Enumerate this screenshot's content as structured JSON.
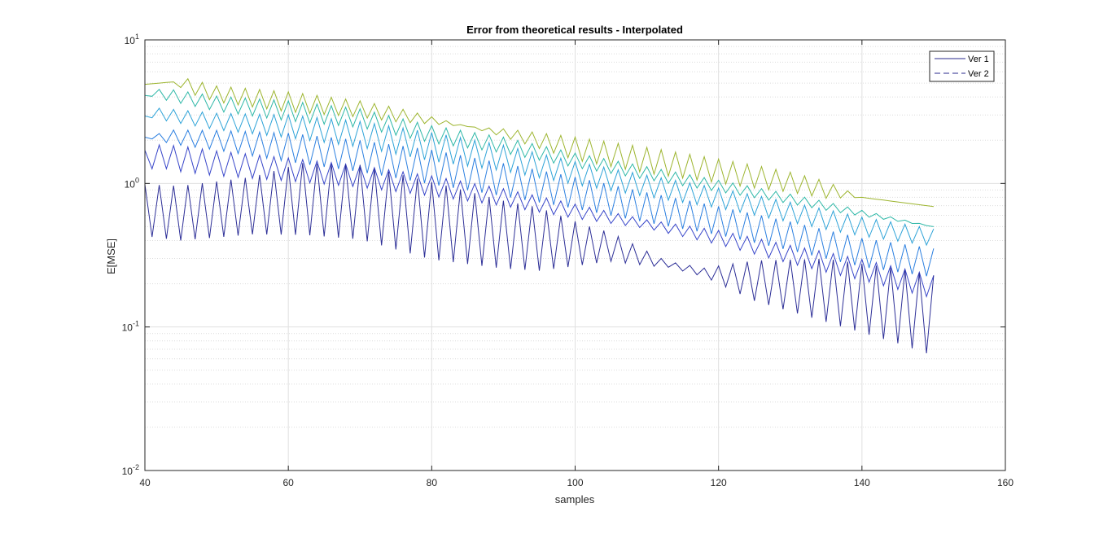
{
  "chart_data": {
    "type": "line",
    "title": "Error from theoretical results - Interpolated",
    "xlabel": "samples",
    "ylabel": "E[MSE]",
    "xlim": [
      40,
      160
    ],
    "ylim": [
      0.01,
      10
    ],
    "yscale": "log",
    "grid": true,
    "minor_grid_y": true,
    "x_ticks": [
      "40",
      "60",
      "80",
      "100",
      "120",
      "140",
      "160"
    ],
    "y_ticks": [
      {
        "base": "10",
        "exp": "1"
      },
      {
        "base": "10",
        "exp": "0"
      },
      {
        "base": "10",
        "exp": "-1"
      },
      {
        "base": "10",
        "exp": "-2"
      }
    ],
    "legend": {
      "placement": "top-right",
      "entries": [
        {
          "label": "Ver 1",
          "style": "solid",
          "color": "#2a2a8c"
        },
        {
          "label": "Ver 2",
          "style": "dashed",
          "color": "#2a2a8c"
        }
      ]
    },
    "series": [
      {
        "color": "#9db52f",
        "x_start": 40,
        "x_end": 150,
        "anchors": [
          [
            40,
            4.9
          ],
          [
            44,
            5.1
          ],
          [
            50,
            4.2
          ],
          [
            60,
            3.7
          ],
          [
            70,
            3.3
          ],
          [
            80,
            2.75
          ],
          [
            90,
            2.25
          ],
          [
            100,
            1.75
          ],
          [
            110,
            1.45
          ],
          [
            120,
            1.22
          ],
          [
            130,
            1.02
          ],
          [
            140,
            0.8
          ],
          [
            150,
            0.69
          ]
        ],
        "osc": [
          [
            40,
            0.0
          ],
          [
            44,
            0.0
          ],
          [
            46,
            0.05
          ],
          [
            60,
            0.07
          ],
          [
            75,
            0.05
          ],
          [
            85,
            0.0
          ],
          [
            92,
            0.04
          ],
          [
            100,
            0.08
          ],
          [
            110,
            0.09
          ],
          [
            125,
            0.08
          ],
          [
            135,
            0.06
          ],
          [
            140,
            0.0
          ],
          [
            150,
            0.0
          ]
        ]
      },
      {
        "color": "#2fb8a8",
        "x_start": 40,
        "x_end": 150,
        "anchors": [
          [
            40,
            4.1
          ],
          [
            42,
            4.25
          ],
          [
            50,
            3.6
          ],
          [
            60,
            3.2
          ],
          [
            70,
            2.85
          ],
          [
            80,
            2.2
          ],
          [
            90,
            1.85
          ],
          [
            100,
            1.45
          ],
          [
            110,
            1.18
          ],
          [
            120,
            0.96
          ],
          [
            130,
            0.78
          ],
          [
            140,
            0.62
          ],
          [
            150,
            0.5
          ]
        ],
        "osc": [
          [
            40,
            0.0
          ],
          [
            43,
            0.04
          ],
          [
            60,
            0.07
          ],
          [
            80,
            0.06
          ],
          [
            100,
            0.05
          ],
          [
            120,
            0.04
          ],
          [
            135,
            0.03
          ],
          [
            150,
            0.0
          ]
        ]
      },
      {
        "color": "#2ea3d8",
        "x_start": 40,
        "x_end": 150,
        "anchors": [
          [
            40,
            2.95
          ],
          [
            42,
            3.05
          ],
          [
            50,
            2.7
          ],
          [
            60,
            2.5
          ],
          [
            70,
            2.2
          ],
          [
            80,
            1.8
          ],
          [
            90,
            1.5
          ],
          [
            100,
            1.18
          ],
          [
            110,
            0.96
          ],
          [
            120,
            0.79
          ],
          [
            130,
            0.63
          ],
          [
            140,
            0.5
          ],
          [
            150,
            0.42
          ]
        ],
        "osc": [
          [
            40,
            0.0
          ],
          [
            42,
            0.04
          ],
          [
            60,
            0.08
          ],
          [
            80,
            0.1
          ],
          [
            100,
            0.08
          ],
          [
            120,
            0.07
          ],
          [
            135,
            0.07
          ],
          [
            150,
            0.06
          ]
        ]
      },
      {
        "color": "#2b7fe0",
        "x_start": 40,
        "x_end": 150,
        "anchors": [
          [
            40,
            2.1
          ],
          [
            44,
            2.1
          ],
          [
            50,
            2.0
          ],
          [
            60,
            1.78
          ],
          [
            70,
            1.55
          ],
          [
            80,
            1.3
          ],
          [
            90,
            1.06
          ],
          [
            100,
            0.86
          ],
          [
            110,
            0.68
          ],
          [
            120,
            0.55
          ],
          [
            130,
            0.43
          ],
          [
            140,
            0.33
          ],
          [
            150,
            0.28
          ]
        ],
        "osc": [
          [
            40,
            0.0
          ],
          [
            44,
            0.05
          ],
          [
            60,
            0.1
          ],
          [
            80,
            0.12
          ],
          [
            100,
            0.11
          ],
          [
            120,
            0.1
          ],
          [
            140,
            0.1
          ],
          [
            150,
            0.1
          ]
        ]
      },
      {
        "color": "#3745c9",
        "x_start": 40,
        "x_end": 150,
        "anchors": [
          [
            40,
            1.45
          ],
          [
            42,
            1.55
          ],
          [
            50,
            1.38
          ],
          [
            60,
            1.25
          ],
          [
            70,
            1.12
          ],
          [
            80,
            0.96
          ],
          [
            90,
            0.8
          ],
          [
            100,
            0.64
          ],
          [
            110,
            0.52
          ],
          [
            120,
            0.42
          ],
          [
            130,
            0.32
          ],
          [
            140,
            0.25
          ],
          [
            150,
            0.19
          ]
        ],
        "osc": [
          [
            40,
            0.07
          ],
          [
            45,
            0.09
          ],
          [
            60,
            0.08
          ],
          [
            80,
            0.07
          ],
          [
            100,
            0.05
          ],
          [
            110,
            0.03
          ],
          [
            120,
            0.05
          ],
          [
            135,
            0.07
          ],
          [
            150,
            0.08
          ]
        ]
      },
      {
        "color": "#2d2f97",
        "x_start": 40,
        "x_end": 150,
        "anchors": [
          [
            40,
            0.65
          ],
          [
            45,
            0.62
          ],
          [
            55,
            0.7
          ],
          [
            62,
            0.78
          ],
          [
            70,
            0.74
          ],
          [
            80,
            0.55
          ],
          [
            90,
            0.44
          ],
          [
            100,
            0.38
          ],
          [
            105,
            0.36
          ],
          [
            112,
            0.28
          ],
          [
            118,
            0.24
          ],
          [
            125,
            0.21
          ],
          [
            135,
            0.18
          ],
          [
            145,
            0.14
          ],
          [
            150,
            0.12
          ]
        ],
        "osc": [
          [
            40,
            0.18
          ],
          [
            45,
            0.19
          ],
          [
            55,
            0.2
          ],
          [
            62,
            0.25
          ],
          [
            80,
            0.27
          ],
          [
            95,
            0.22
          ],
          [
            102,
            0.13
          ],
          [
            108,
            0.07
          ],
          [
            113,
            0.02
          ],
          [
            118,
            0.03
          ],
          [
            125,
            0.14
          ],
          [
            135,
            0.22
          ],
          [
            145,
            0.26
          ],
          [
            150,
            0.28
          ]
        ]
      }
    ]
  }
}
